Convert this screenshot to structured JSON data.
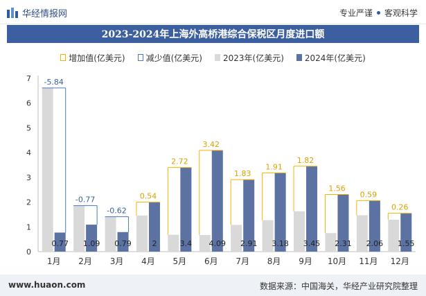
{
  "header": {
    "logo_text": "华经情报网",
    "slogan_left": "专业严谨",
    "slogan_right": "客观科学"
  },
  "footer": {
    "website": "www.huaon.com",
    "source": "数据来源：中国海关，华经产业研究院整理"
  },
  "colors": {
    "bar_2023": "#d9d9d9",
    "bar_2024": "#5b72a2",
    "increase": "#f0b400",
    "decrease": "#4a78b8",
    "title_bg": "#3c5fa0"
  },
  "chart_data": {
    "type": "bar",
    "title": "2023-2024年上海外高桥港综合保税区月度进口额",
    "categories": [
      "1月",
      "2月",
      "3月",
      "4月",
      "5月",
      "6月",
      "7月",
      "8月",
      "9月",
      "10月",
      "11月",
      "12月"
    ],
    "series": [
      {
        "name": "2023年(亿美元)",
        "values": [
          6.61,
          1.86,
          1.41,
          1.46,
          0.68,
          0.67,
          1.08,
          1.27,
          1.63,
          0.75,
          1.47,
          1.29
        ]
      },
      {
        "name": "2024年(亿美元)",
        "values": [
          0.77,
          1.09,
          0.79,
          2,
          3.4,
          4.09,
          2.91,
          3.18,
          3.45,
          2.31,
          2.06,
          1.55
        ]
      }
    ],
    "change": [
      {
        "name": "增加值(亿美元)",
        "months": [
          "4月",
          "5月",
          "6月",
          "7月",
          "8月",
          "9月",
          "10月",
          "11月",
          "12月"
        ],
        "labels": [
          "0.54",
          "2.72",
          "3.42",
          "1.83",
          "1.91",
          "1.82",
          "1.56",
          "0.59",
          "0.26"
        ]
      },
      {
        "name": "减少值(亿美元)",
        "months": [
          "1月",
          "2月",
          "3月"
        ],
        "labels": [
          "-5.84",
          "-0.77",
          "-0.62"
        ]
      }
    ],
    "value_labels_2024": [
      "0.77",
      "1.09",
      "0.79",
      "2",
      "3.4",
      "4.09",
      "2.91",
      "3.18",
      "3.45",
      "2.31",
      "2.06",
      "1.55"
    ],
    "ylim": [
      0,
      7
    ],
    "yticks": [
      "0",
      "1",
      "2",
      "3",
      "4",
      "5",
      "6",
      "7"
    ],
    "grid": false,
    "legend_position": "top"
  }
}
